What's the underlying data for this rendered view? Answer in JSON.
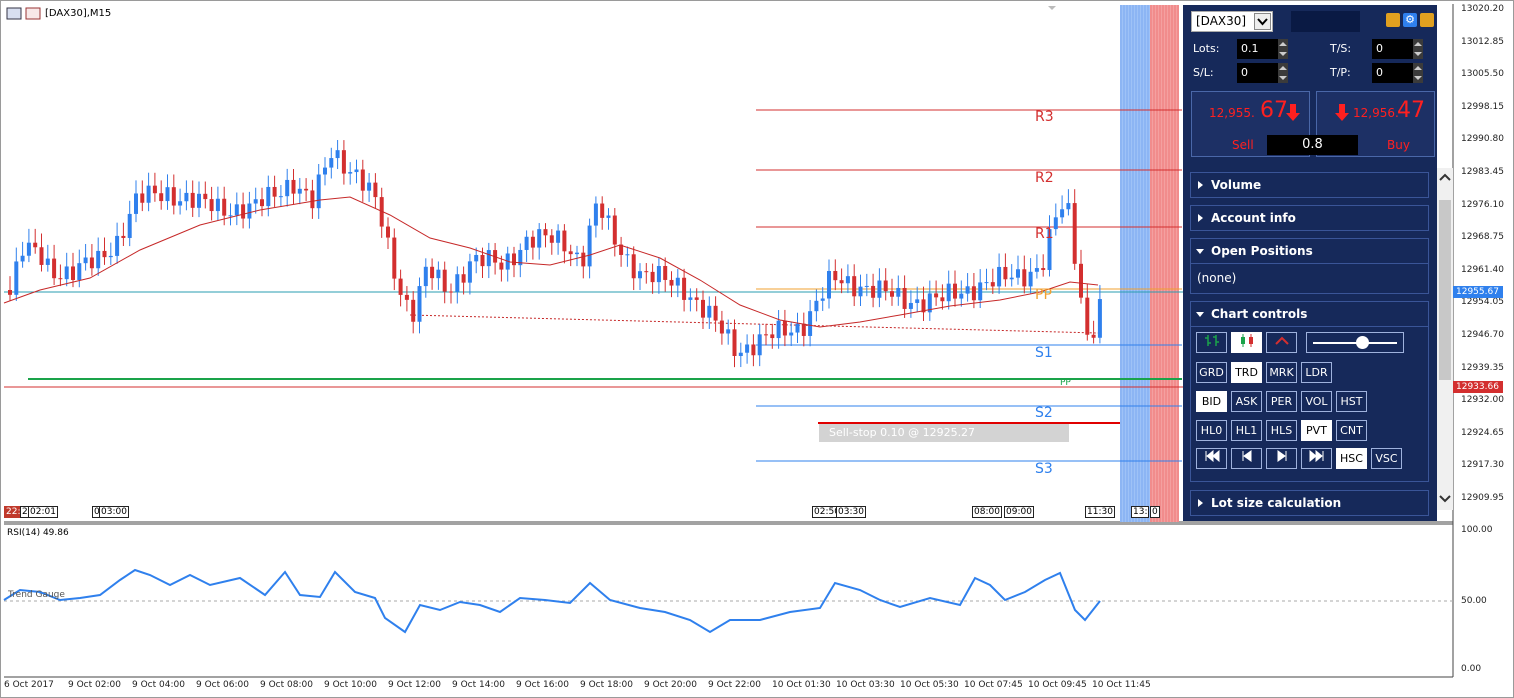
{
  "chart_title": "[DAX30],M15",
  "price_axis": [
    "13020.20",
    "13012.85",
    "13005.50",
    "12998.15",
    "12990.80",
    "12983.45",
    "12976.10",
    "12968.75",
    "12961.40",
    "12954.05",
    "12946.70",
    "12939.35",
    "12932.00",
    "12924.65",
    "12917.30",
    "12909.95"
  ],
  "price_current": "12955.67",
  "price_level": "12933.66",
  "rsi_axis": [
    "100.00",
    "50.00",
    "0.00"
  ],
  "rsi_label": "RSI(14) 49.86",
  "trend_gauge": "Trend Gauge",
  "time_axis": [
    "6 Oct 2017",
    "9 Oct 02:00",
    "9 Oct 04:00",
    "9 Oct 06:00",
    "9 Oct 08:00",
    "9 Oct 10:00",
    "9 Oct 12:00",
    "9 Oct 14:00",
    "9 Oct 16:00",
    "9 Oct 18:00",
    "9 Oct 20:00",
    "9 Oct 22:00",
    "10 Oct 01:30",
    "10 Oct 03:30",
    "10 Oct 05:30",
    "10 Oct 07:45",
    "10 Oct 09:45",
    "10 Oct 11:45"
  ],
  "time_labels": [
    "22:",
    "2",
    "02:01",
    "0",
    "03:00",
    "02:50",
    "03:30",
    "08:00",
    "09:00",
    "11:30",
    "13:",
    "0"
  ],
  "pivots": {
    "r3": "R3",
    "r2": "R2",
    "r1": "R1",
    "pp": "PP",
    "s1": "S1",
    "s2": "S2",
    "s3": "S3",
    "pp_small": "PP"
  },
  "order_label": "Sell-stop 0.10 @ 12925.27",
  "colors": {
    "bull": "#2f80ed",
    "bear": "#d32f2f",
    "ma": "#c62828",
    "panel": "#16295a",
    "rsi": "#2f80ed"
  },
  "panel": {
    "symbol": "[DAX30]",
    "lots_label": "Lots:",
    "lots": "0.1",
    "ts_label": "T/S:",
    "ts": "0",
    "sl_label": "S/L:",
    "sl": "0",
    "tp_label": "T/P:",
    "tp": "0",
    "sell_small": "12,955.",
    "sell_big": "67",
    "sell_label": "Sell",
    "buy_small": "12,956.",
    "buy_big": "47",
    "buy_label": "Buy",
    "spread": "0.8",
    "sections": {
      "volume": "Volume",
      "account": "Account info",
      "positions": "Open Positions",
      "positions_value": "(none)",
      "chart_controls": "Chart controls",
      "lot_size": "Lot size calculation"
    },
    "buttons_row1": [
      "GRD",
      "TRD",
      "MRK",
      "LDR"
    ],
    "buttons_row2": [
      "BID",
      "ASK",
      "PER",
      "VOL",
      "HST"
    ],
    "buttons_row3": [
      "HL0",
      "HL1",
      "HLS",
      "PVT",
      "CNT"
    ],
    "buttons_row4b": [
      "HSC",
      "VSC"
    ],
    "icons": [
      "link-icon",
      "gear-icon",
      "expand-icon"
    ]
  }
}
